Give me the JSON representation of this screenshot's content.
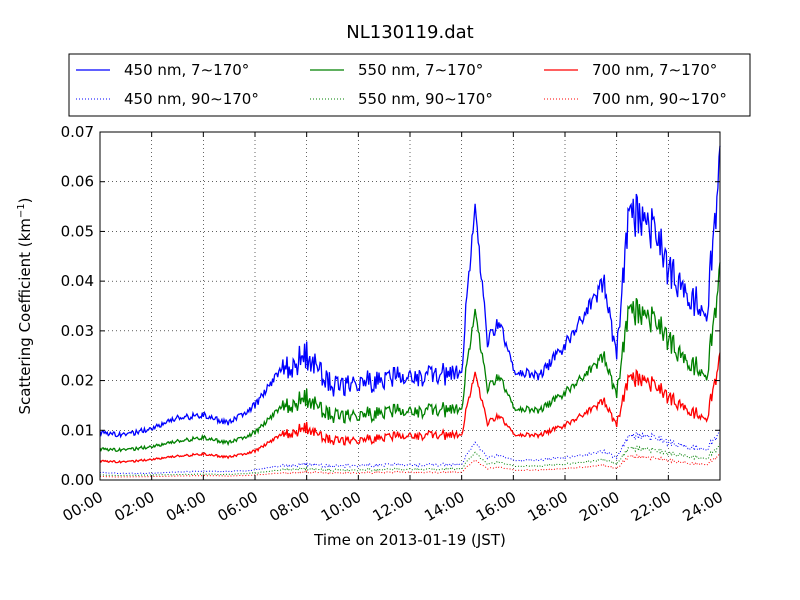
{
  "chart_data": {
    "type": "line",
    "title": "NL130119.dat",
    "xlabel": "Time on 2013-01-19 (JST)",
    "ylabel": "Scattering Coefficient (km",
    "ylabel_sup": "−1",
    "ylabel_close": ")",
    "xlim": [
      "00:00",
      "24:00"
    ],
    "ylim": [
      0.0,
      0.07
    ],
    "grid": true,
    "legend_position": "top",
    "x_ticks": [
      "00:00",
      "02:00",
      "04:00",
      "06:00",
      "08:00",
      "10:00",
      "12:00",
      "14:00",
      "16:00",
      "18:00",
      "20:00",
      "22:00",
      "24:00"
    ],
    "y_ticks": [
      "0.00",
      "0.01",
      "0.02",
      "0.03",
      "0.04",
      "0.05",
      "0.06",
      "0.07"
    ],
    "x_hours": [
      0,
      1,
      2,
      3,
      4,
      5,
      6,
      7,
      8,
      8.5,
      9,
      10,
      11,
      12,
      13,
      14,
      14.5,
      15,
      15.5,
      16,
      17,
      18,
      19,
      19.5,
      20,
      20.5,
      21,
      21.5,
      22,
      22.5,
      23,
      23.5,
      24
    ],
    "series": [
      {
        "name": "450 nm, 7∼170°",
        "color": "#0000ff",
        "style": "solid",
        "values": [
          0.0095,
          0.009,
          0.0105,
          0.0125,
          0.013,
          0.0115,
          0.015,
          0.022,
          0.025,
          0.022,
          0.019,
          0.0195,
          0.02,
          0.021,
          0.021,
          0.022,
          0.055,
          0.028,
          0.032,
          0.022,
          0.021,
          0.027,
          0.035,
          0.04,
          0.025,
          0.055,
          0.052,
          0.05,
          0.042,
          0.039,
          0.036,
          0.035,
          0.063
        ]
      },
      {
        "name": "450 nm, 90∼170°",
        "color": "#0000ff",
        "style": "dotted",
        "values": [
          0.0015,
          0.0013,
          0.0014,
          0.0016,
          0.0018,
          0.0017,
          0.002,
          0.0028,
          0.0032,
          0.003,
          0.0028,
          0.0029,
          0.003,
          0.0031,
          0.003,
          0.0032,
          0.0075,
          0.0045,
          0.005,
          0.004,
          0.004,
          0.0045,
          0.0052,
          0.0058,
          0.0045,
          0.009,
          0.0088,
          0.0085,
          0.0075,
          0.007,
          0.0065,
          0.0065,
          0.0095
        ]
      },
      {
        "name": "550 nm, 7∼170°",
        "color": "#008000",
        "style": "solid",
        "values": [
          0.0062,
          0.006,
          0.0068,
          0.0078,
          0.0085,
          0.0075,
          0.0095,
          0.0145,
          0.0165,
          0.0145,
          0.013,
          0.013,
          0.0135,
          0.014,
          0.014,
          0.0145,
          0.034,
          0.0185,
          0.021,
          0.0145,
          0.014,
          0.0175,
          0.022,
          0.025,
          0.017,
          0.035,
          0.033,
          0.032,
          0.028,
          0.025,
          0.023,
          0.022,
          0.041
        ]
      },
      {
        "name": "550 nm, 90∼170°",
        "color": "#008000",
        "style": "dotted",
        "values": [
          0.001,
          0.0009,
          0.001,
          0.0011,
          0.0012,
          0.0011,
          0.0014,
          0.002,
          0.0023,
          0.0021,
          0.002,
          0.002,
          0.0021,
          0.0022,
          0.0021,
          0.0023,
          0.0055,
          0.0032,
          0.0036,
          0.0028,
          0.0028,
          0.0032,
          0.0037,
          0.0041,
          0.0032,
          0.0065,
          0.0062,
          0.006,
          0.0053,
          0.005,
          0.0046,
          0.0046,
          0.0068
        ]
      },
      {
        "name": "700 nm, 7∼170°",
        "color": "#ff0000",
        "style": "solid",
        "values": [
          0.0038,
          0.0036,
          0.0042,
          0.0048,
          0.0052,
          0.0046,
          0.0058,
          0.009,
          0.0105,
          0.009,
          0.008,
          0.008,
          0.0085,
          0.009,
          0.009,
          0.0092,
          0.0215,
          0.0115,
          0.013,
          0.0092,
          0.009,
          0.011,
          0.014,
          0.016,
          0.011,
          0.021,
          0.02,
          0.019,
          0.0165,
          0.015,
          0.0135,
          0.013,
          0.024
        ]
      },
      {
        "name": "700 nm, 90∼170°",
        "color": "#ff0000",
        "style": "dotted",
        "values": [
          0.0007,
          0.0006,
          0.0007,
          0.0008,
          0.0009,
          0.0008,
          0.001,
          0.0014,
          0.0016,
          0.0015,
          0.0014,
          0.0014,
          0.0015,
          0.0016,
          0.0015,
          0.0016,
          0.004,
          0.0023,
          0.0026,
          0.002,
          0.002,
          0.0023,
          0.0027,
          0.003,
          0.0023,
          0.0048,
          0.0046,
          0.0044,
          0.0039,
          0.0036,
          0.0033,
          0.0033,
          0.005
        ]
      }
    ]
  }
}
